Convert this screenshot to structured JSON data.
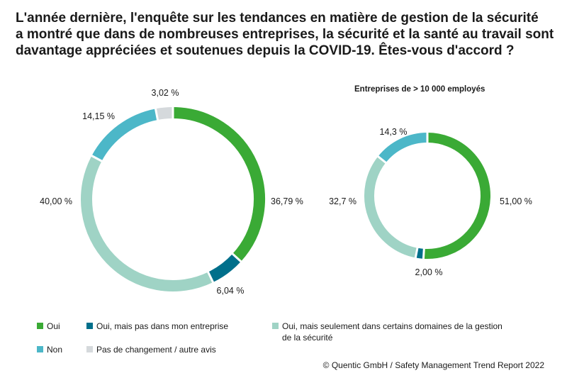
{
  "title": {
    "line1": "L'année dernière, l'enquête sur les tendances en matière de gestion de la sécurité",
    "line2": "a montré que dans de nombreuses entreprises, la sécurité et la santé au travail sont",
    "line3": "davantage appréciées et soutenues depuis la COVID-19. Êtes-vous d'accord ?"
  },
  "colors": {
    "oui": "#3aaa35",
    "oui_pas_mon_entreprise": "#006f8b",
    "oui_certains_domaines": "#9fd3c5",
    "non": "#4cb7c8",
    "pas_de_changement": "#d5d9dc"
  },
  "legend": [
    {
      "key": "oui",
      "label": "Oui"
    },
    {
      "key": "oui_pas_mon_entreprise",
      "label": "Oui, mais pas dans mon entreprise"
    },
    {
      "key": "oui_certains_domaines",
      "label": "Oui, mais seulement dans certains domaines de la gestion de la sécurité"
    },
    {
      "key": "non",
      "label": "Non"
    },
    {
      "key": "pas_de_changement",
      "label": "Pas de changement / autre avis"
    }
  ],
  "source": "© Quentic GmbH / Safety Management Trend Report 2022",
  "chart_data": [
    {
      "type": "pie",
      "title": "",
      "categories": [
        "Oui",
        "Oui, mais pas dans mon entreprise",
        "Oui, mais seulement dans certains domaines de la gestion de la sécurité",
        "Non",
        "Pas de changement / autre avis"
      ],
      "values": [
        36.79,
        6.04,
        40.0,
        14.15,
        3.02
      ],
      "labels": [
        "36,79 %",
        "6,04 %",
        "40,00 %",
        "14,15 %",
        "3,02 %"
      ]
    },
    {
      "type": "pie",
      "title": "Entreprises de > 10 000 employés",
      "categories": [
        "Oui",
        "Oui, mais pas dans mon entreprise",
        "Oui, mais seulement dans certains domaines de la gestion de la sécurité",
        "Non"
      ],
      "values": [
        51.0,
        2.0,
        32.7,
        14.3
      ],
      "labels": [
        "51,00 %",
        "2,00 %",
        "32,7 %",
        "14,3 %"
      ]
    }
  ]
}
